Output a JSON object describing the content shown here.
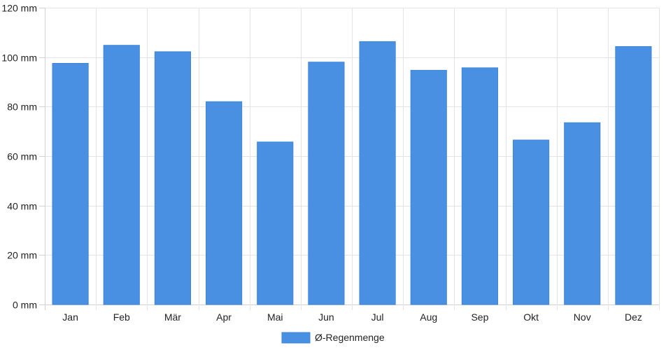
{
  "chart_data": {
    "type": "bar",
    "categories": [
      "Jan",
      "Feb",
      "Mär",
      "Apr",
      "Mai",
      "Jun",
      "Jul",
      "Aug",
      "Sep",
      "Okt",
      "Nov",
      "Dez"
    ],
    "series": [
      {
        "name": "Ø-Regenmenge",
        "values": [
          97.5,
          104.8,
          102.2,
          82.0,
          65.7,
          98.0,
          106.3,
          94.7,
          95.7,
          66.5,
          73.5,
          104.3
        ],
        "color": "#4a90e2"
      }
    ],
    "y_ticks": [
      0,
      20,
      40,
      60,
      80,
      100,
      120
    ],
    "y_tick_suffix": " mm",
    "ylim": [
      0,
      120
    ],
    "grid": true,
    "legend_position": "bottom-center",
    "title": "",
    "xlabel": "",
    "ylabel": ""
  }
}
